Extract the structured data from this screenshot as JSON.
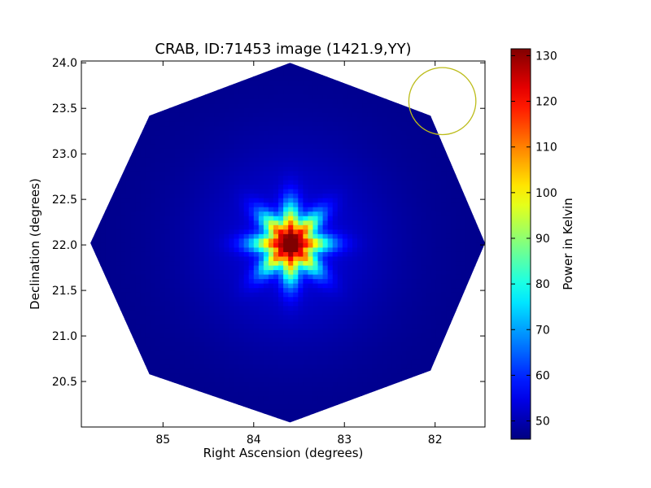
{
  "chart_data": {
    "type": "heatmap",
    "title": "CRAB, ID:71453 image (1421.9,YY)",
    "xlabel": "Right Ascension (degrees)",
    "ylabel": "Declination (degrees)",
    "x_axis": {
      "inverted": true,
      "range": [
        85.9,
        81.45
      ],
      "ticks": [
        85,
        84,
        83,
        82
      ]
    },
    "y_axis": {
      "range": [
        20.0,
        24.02
      ],
      "ticks": [
        20.5,
        21.0,
        21.5,
        22.0,
        22.5,
        23.0,
        23.5,
        24.0
      ]
    },
    "colorbar": {
      "label": "Power in Kelvin",
      "range": [
        46,
        131.5
      ],
      "ticks": [
        50,
        60,
        70,
        80,
        90,
        100,
        110,
        120,
        130
      ],
      "colormap": "jet"
    },
    "map": {
      "footprint": "octagon",
      "center_ra": 83.6,
      "center_dec": 22.02,
      "footprint_vertices": [
        [
          83.6,
          24.0
        ],
        [
          85.15,
          23.42
        ],
        [
          85.8,
          22.02
        ],
        [
          85.15,
          20.58
        ],
        [
          83.6,
          20.05
        ],
        [
          82.05,
          20.62
        ],
        [
          81.45,
          22.02
        ],
        [
          82.05,
          23.42
        ]
      ],
      "background_kelvin": 47,
      "peak_kelvin": 130,
      "source_ra": 83.6,
      "source_dec": 22.02,
      "grid_size": 80
    },
    "beam_circle": {
      "ra": 81.92,
      "dec": 23.58,
      "radius_deg": 0.37,
      "color": "#bcbc1a"
    }
  }
}
